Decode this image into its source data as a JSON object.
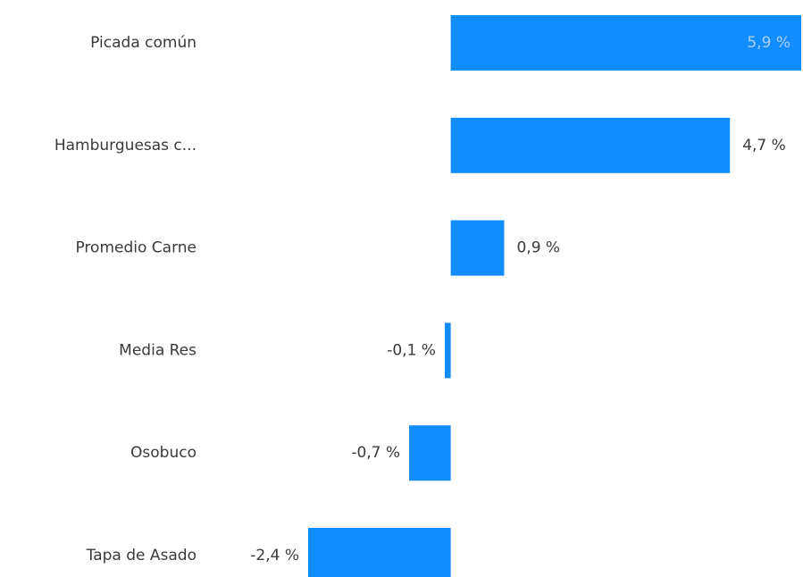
{
  "chart_data": {
    "type": "bar",
    "orientation": "horizontal",
    "categories": [
      "Picada común",
      "Hamburguesas c...",
      "Promedio Carne",
      "Media Res",
      "Osobuco",
      "Tapa de Asado"
    ],
    "values": [
      5.9,
      4.7,
      0.9,
      -0.1,
      -0.7,
      -2.4
    ],
    "value_labels": [
      "5,9 %",
      "4,7 %",
      "0,9 %",
      "-0,1 %",
      "-0,7 %",
      "-2,4 %"
    ],
    "color": "#118dff"
  }
}
